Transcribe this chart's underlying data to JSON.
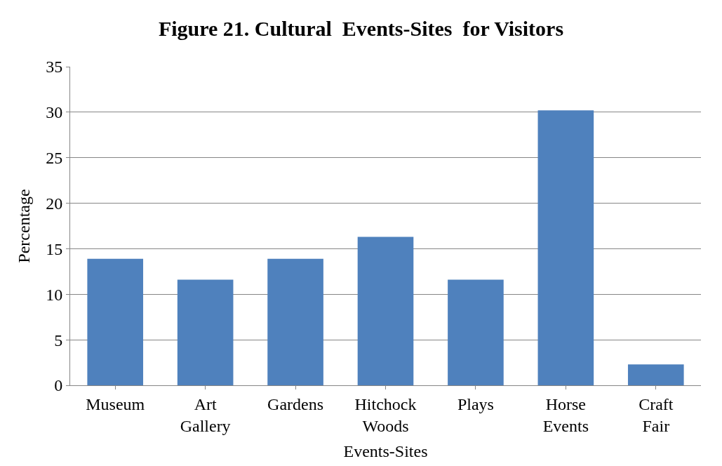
{
  "chart_data": {
    "type": "bar",
    "title": "Figure 21. Cultural  Events-Sites  for Visitors",
    "xlabel": "Events-Sites",
    "ylabel": "Percentage",
    "categories": [
      "Museum",
      "Art Gallery",
      "Gardens",
      "Hitchock Woods",
      "Plays",
      "Horse Events",
      "Craft Fair"
    ],
    "values": [
      13.9,
      11.6,
      13.9,
      16.3,
      11.6,
      30.2,
      2.3
    ],
    "color": "#4f81bd",
    "ylim": [
      0,
      35
    ],
    "yticks": [
      0,
      5,
      10,
      15,
      20,
      25,
      30,
      35
    ],
    "grid": "y"
  }
}
